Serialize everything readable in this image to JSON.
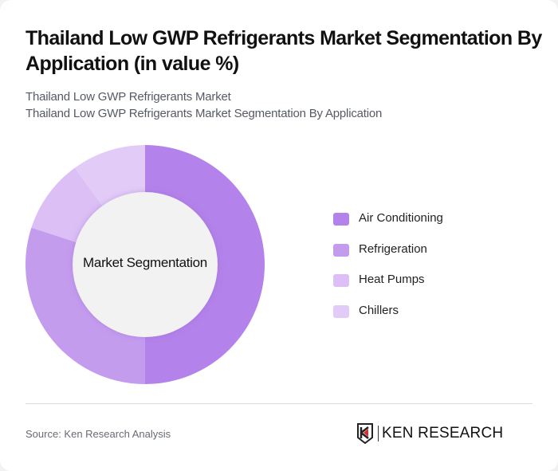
{
  "header": {
    "title": "Thailand Low GWP Refrigerants Market Segmentation By Application (in value %)",
    "subtitle_line1": "Thailand Low GWP Refrigerants Market",
    "subtitle_line2": "Thailand Low GWP Refrigerants Market Segmentation By Application"
  },
  "chart": {
    "center_label": "Market Segmentation"
  },
  "legend": {
    "items": [
      {
        "label": "Air Conditioning",
        "color": "#b382ea"
      },
      {
        "label": "Refrigeration",
        "color": "#c49cee"
      },
      {
        "label": "Heat Pumps",
        "color": "#dbbff5"
      },
      {
        "label": "Chillers",
        "color": "#e2ccf7"
      }
    ]
  },
  "footer": {
    "source": "Source: Ken Research Analysis",
    "logo_text": "KEN RESEARCH"
  },
  "chart_data": {
    "type": "pie",
    "subtype": "donut",
    "title": "Thailand Low GWP Refrigerants Market Segmentation By Application (in value %)",
    "center_label": "Market Segmentation",
    "categories": [
      "Air Conditioning",
      "Refrigeration",
      "Heat Pumps",
      "Chillers"
    ],
    "values": [
      50,
      30,
      10,
      10
    ],
    "colors": [
      "#b382ea",
      "#c49cee",
      "#dbbff5",
      "#e2ccf7"
    ],
    "start_angle": "top, clockwise",
    "legend_position": "right",
    "unit": "value %"
  }
}
